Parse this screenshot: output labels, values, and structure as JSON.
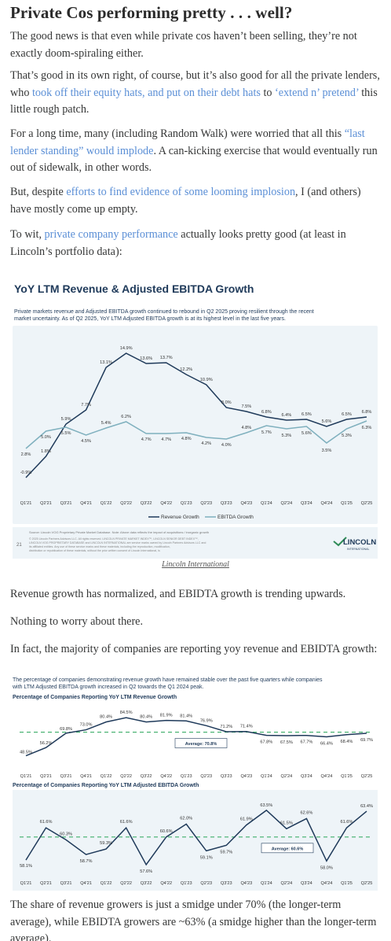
{
  "heading": "Private Cos performing pretty . . . well?",
  "paragraphs": {
    "p1": "The good news is that even while private cos haven’t been selling, they’re not exactly doom-spiraling either.",
    "p2": {
      "t1": "That’s good in its own right, of course, but it’s also good for all the private lenders, who ",
      "l1": "took off their equity hats, and put on their debt hats",
      "t2": " to ",
      "l2": "‘extend n’ pretend’",
      "t3": " this little rough patch."
    },
    "p3": {
      "t1": "For a long time, many (including Random Walk) were worried that all this ",
      "l1": "“last lender standing” would implode",
      "t2": ". A can-kicking exercise that would eventually run out of sidewalk, in other words."
    },
    "p4": {
      "t1": "But, despite ",
      "l1": "efforts to find evidence of some looming implosion",
      "t2": ", I (and others) have mostly come up empty."
    },
    "p5": {
      "t1": "To wit, ",
      "l1": "private company performance",
      "t2": " actually looks pretty good (at least in Lincoln’s portfolio data):"
    },
    "p6": "Revenue growth has normalized, and EBIDTA growth is trending upwards.",
    "p7": "Nothing to worry about there.",
    "p8": "In fact, the majority of companies are reporting yoy revenue and EBIDTA growth:",
    "p9": "The share of revenue growers is just a smidge under 70% (the longer-term average), while EBIDTA growers are ~63% (a smidge higher than the longer-term average)."
  },
  "figure1": {
    "caption": "Lincoln International",
    "page_number": "21",
    "logo_text": "LINCOLN",
    "logo_sub": "INTERNATIONAL",
    "source_note": "Source: Lincoln VOG Proprietary Private Market Database. Note: Above data reflects the impact of acquisitions / inorganic growth",
    "legal_note": "© 2025 Lincoln Partners Advisors LLC. All rights reserved. LINCOLN PRIVATE MARKET INDEX™, LINCOLN SENIOR DEBT INDEX™, LINCOLN VOG PROPRIETARY DATABASE and LINCOLN INTERNATIONAL are service marks owned by Lincoln Partners Advisors LLC and its affiliated entities. Any use of these service marks and these materials, including the reproduction, modification, distribution or republication of these materials, without the prior written consent of Lincoln International, is strictly prohibited."
  },
  "chart_data": [
    {
      "type": "line",
      "title": "YoY LTM Revenue & Adjusted EBITDA Growth",
      "subtitle": "Private markets revenue and Adjusted EBITDA growth continued to rebound in Q2 2025 proving resilient through the recent market uncertainty. As of Q2 2025, YoY LTM Adjusted EBITDA growth is at its highest level in the last five years.",
      "categories": [
        "Q1'21",
        "Q2'21",
        "Q3'21",
        "Q4'21",
        "Q1'22",
        "Q2'22",
        "Q3'22",
        "Q4'22",
        "Q1'23",
        "Q2'23",
        "Q3'23",
        "Q4'23",
        "Q1'24",
        "Q2'24",
        "Q3'24",
        "Q4'24",
        "Q1'25",
        "Q2'25"
      ],
      "series": [
        {
          "name": "Revenue Growth",
          "color": "#1f3a5a",
          "values": [
            -0.9,
            1.8,
            5.9,
            7.7,
            13.1,
            14.9,
            13.6,
            13.7,
            12.2,
            10.9,
            8.0,
            7.5,
            6.8,
            6.4,
            6.5,
            5.6,
            6.5,
            6.8
          ],
          "labels": [
            "-0.9%",
            "1.8%",
            "5.9%",
            "7.7%",
            "13.1%",
            "14.9%",
            "13.6%",
            "13.7%",
            "12.2%",
            "10.9%",
            "8.0%",
            "7.5%",
            "6.8%",
            "6.4%",
            "6.5%",
            "5.6%",
            "6.5%",
            "6.8%"
          ]
        },
        {
          "name": "EBITDA Growth",
          "color": "#7fb0be",
          "values": [
            2.8,
            5.0,
            5.5,
            4.5,
            5.4,
            6.2,
            4.7,
            4.7,
            4.8,
            4.2,
            4.0,
            4.8,
            5.7,
            5.3,
            5.6,
            3.5,
            5.3,
            6.3
          ],
          "labels": [
            "2.8%",
            "5.0%",
            "5.5%",
            "4.5%",
            "5.4%",
            "6.2%",
            "4.7%",
            "4.7%",
            "4.8%",
            "4.2%",
            "4.0%",
            "4.8%",
            "5.7%",
            "5.3%",
            "5.6%",
            "3.5%",
            "5.3%",
            "6.3%"
          ]
        }
      ],
      "ylim": [
        -2,
        16
      ],
      "legend": "bottom",
      "grid": false
    },
    {
      "type": "line",
      "title": "Percentage of Companies Reporting YoY LTM Revenue Growth",
      "subtitle": "The percentage of companies demonstrating revenue growth have remained stable over the past five quarters while companies with LTM Adjusted EBITDA growth increased in Q2 towards the Q1 2024 peak.",
      "categories": [
        "Q1'21",
        "Q2'21",
        "Q3'21",
        "Q4'21",
        "Q1'22",
        "Q2'22",
        "Q3'22",
        "Q4'22",
        "Q1'23",
        "Q2'23",
        "Q3'23",
        "Q4'23",
        "Q1'24",
        "Q2'24",
        "Q3'24",
        "Q4'24",
        "Q1'25",
        "Q2'25"
      ],
      "series": [
        {
          "color": "#1f3a5a",
          "values": [
            48.5,
            56.2,
            69.8,
            73.0,
            80.4,
            84.5,
            80.4,
            81.9,
            81.4,
            76.9,
            71.2,
            71.4,
            67.8,
            67.5,
            67.7,
            66.4,
            68.4,
            69.7
          ],
          "labels": [
            "48.5%",
            "56.2%",
            "69.8%",
            "73.0%",
            "80.4%",
            "84.5%",
            "80.4%",
            "81.9%",
            "81.4%",
            "76.9%",
            "71.2%",
            "71.4%",
            "67.8%",
            "67.5%",
            "67.7%",
            "66.4%",
            "68.4%",
            "69.7%"
          ]
        }
      ],
      "average": 70.8,
      "average_label": "Average: 70.8%",
      "ylim": [
        40,
        92
      ]
    },
    {
      "type": "line",
      "title": "Percentage of Companies Reporting YoY LTM Adjusted EBITDA Growth",
      "categories": [
        "Q1'21",
        "Q2'21",
        "Q3'21",
        "Q4'21",
        "Q1'22",
        "Q2'22",
        "Q3'22",
        "Q4'22",
        "Q1'23",
        "Q2'23",
        "Q3'23",
        "Q4'23",
        "Q1'24",
        "Q2'24",
        "Q3'24",
        "Q4'24",
        "Q1'25",
        "Q2'25"
      ],
      "series": [
        {
          "color": "#1f3a5a",
          "values": [
            58.1,
            61.6,
            60.3,
            58.7,
            59.3,
            61.6,
            57.6,
            60.6,
            62.0,
            59.1,
            59.7,
            61.9,
            63.5,
            61.5,
            62.6,
            58.0,
            61.6,
            63.4
          ],
          "labels": [
            "58.1%",
            "61.6%",
            "60.3%",
            "58.7%",
            "59.3%",
            "61.6%",
            "57.6%",
            "60.6%",
            "62.0%",
            "59.1%",
            "59.7%",
            "61.9%",
            "63.5%",
            "61.5%",
            "62.6%",
            "58.0%",
            "61.6%",
            "63.4%"
          ]
        }
      ],
      "average": 60.6,
      "average_label": "Average: 60.6%",
      "ylim": [
        57,
        64
      ]
    }
  ],
  "colors": {
    "link": "#5b8fd6",
    "chart_title": "#1f3a5a",
    "revenue_line": "#1f3a5a",
    "ebitda_line": "#7fb0be",
    "average_line": "#3fae6a",
    "chart_bg": "#eef4f8"
  }
}
